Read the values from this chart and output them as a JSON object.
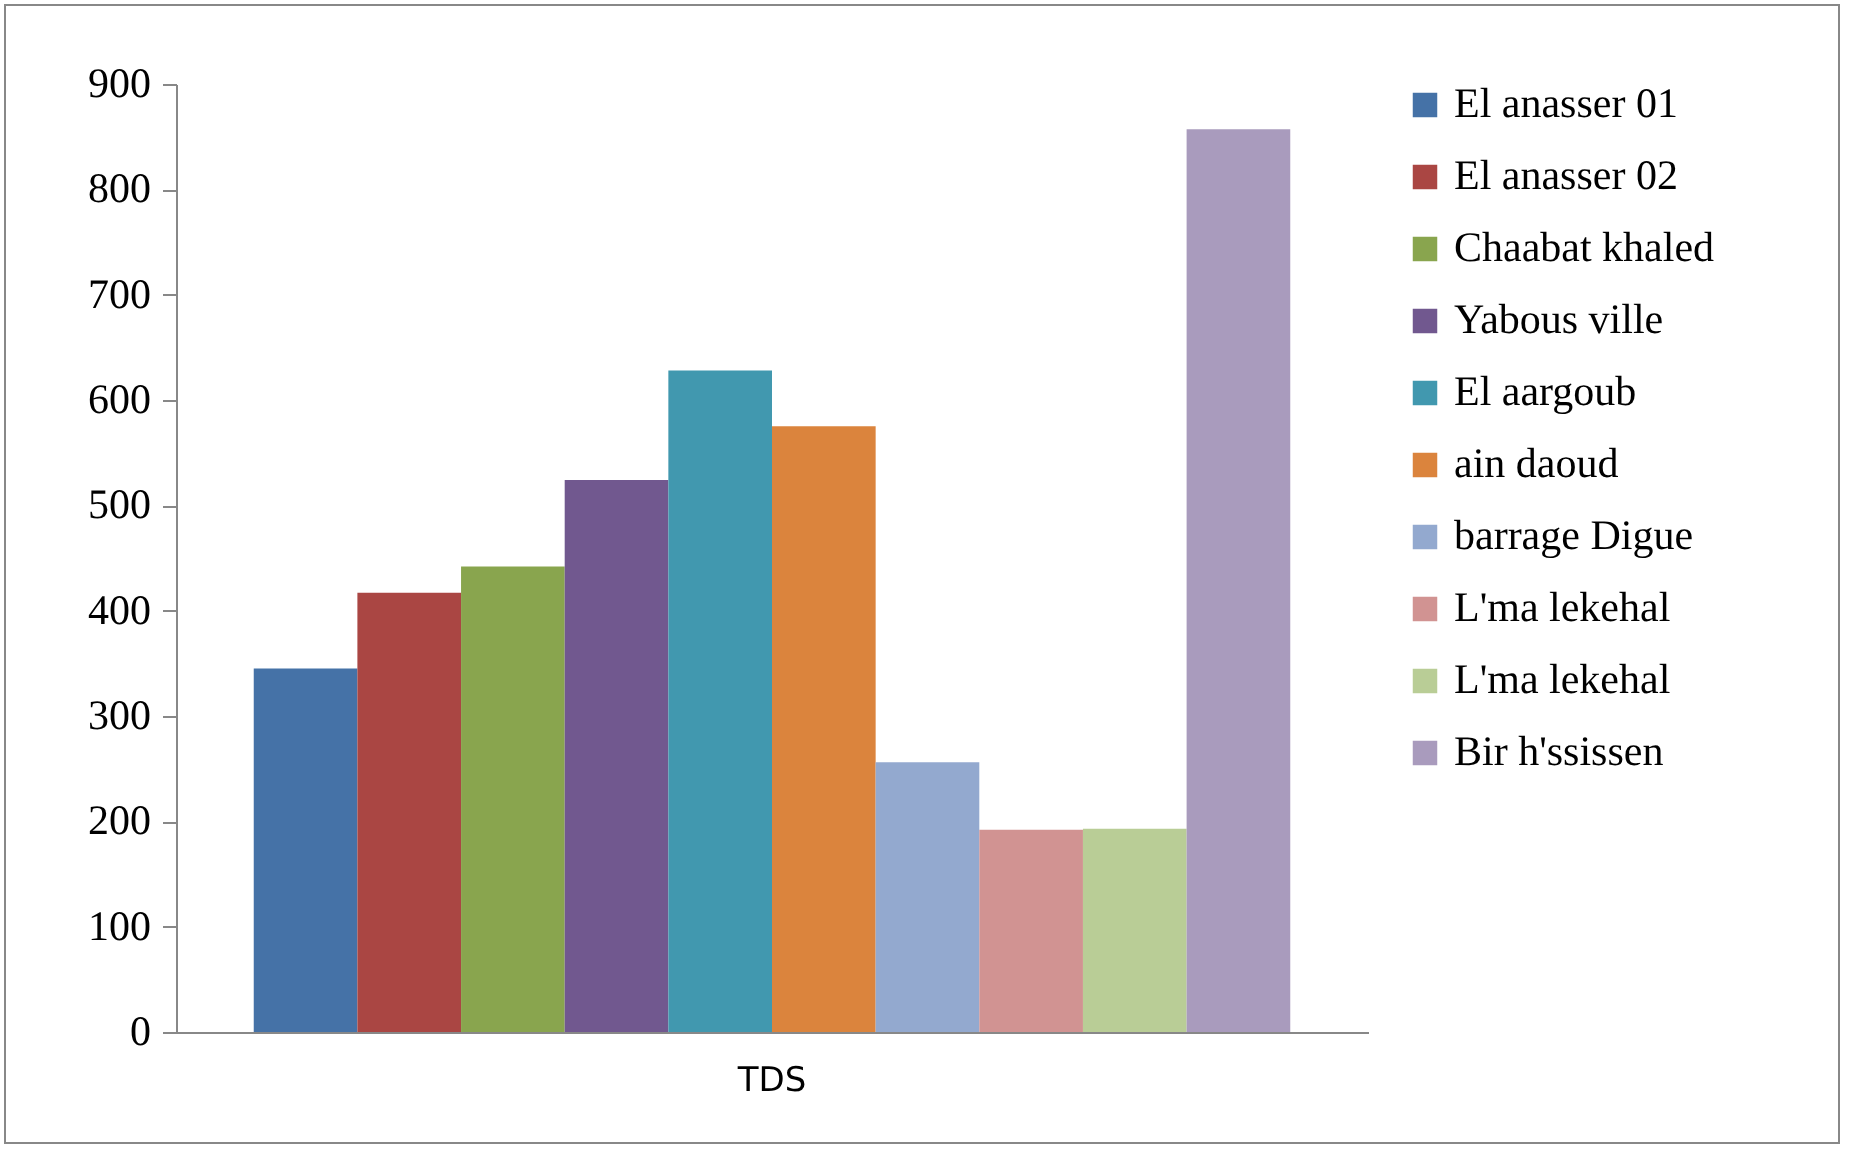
{
  "chart_data": {
    "type": "bar",
    "categories": [
      "TDS"
    ],
    "series": [
      {
        "name": "El anasser 01",
        "color": "#4572a7",
        "values": [
          345
        ]
      },
      {
        "name": "El anasser 02",
        "color": "#aa4643",
        "values": [
          417
        ]
      },
      {
        "name": "Chaabat khaled",
        "color": "#89a54e",
        "values": [
          442
        ]
      },
      {
        "name": "Yabous ville",
        "color": "#71588f",
        "values": [
          524
        ]
      },
      {
        "name": "El aargoub",
        "color": "#4198af",
        "values": [
          628
        ]
      },
      {
        "name": "ain daoud",
        "color": "#db843d",
        "values": [
          575
        ]
      },
      {
        "name": "barrage Digue",
        "color": "#93a9cf",
        "values": [
          256
        ]
      },
      {
        "name": "L'ma lekehal",
        "color": "#d19392",
        "values": [
          192
        ]
      },
      {
        "name": "L'ma lekehal",
        "color": "#b9cd96",
        "values": [
          193
        ]
      },
      {
        "name": "Bir h'ssissen",
        "color": "#a99bbd",
        "values": [
          857
        ]
      }
    ],
    "ylim": [
      0,
      900
    ],
    "yticks": [
      0,
      100,
      200,
      300,
      400,
      500,
      600,
      700,
      800,
      900
    ],
    "grid": false,
    "legend": "right"
  }
}
